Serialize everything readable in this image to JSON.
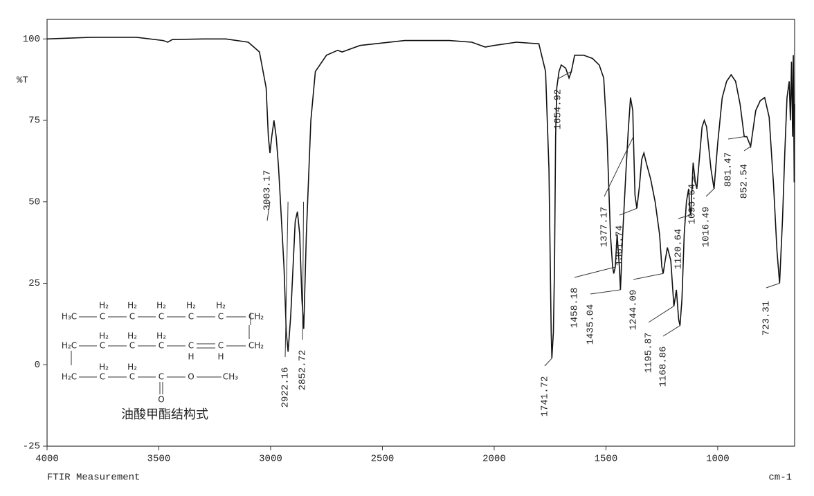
{
  "chart_data": {
    "type": "line",
    "ylabel": "%T",
    "xlabel": "cm-1",
    "footer": "FTIR Measurement",
    "xlim": [
      4000,
      656
    ],
    "ylim": [
      -25,
      106
    ],
    "xticks": [
      4000,
      3500,
      3000,
      2500,
      2000,
      1500,
      1000
    ],
    "yticks": [
      100,
      75,
      50,
      25,
      0,
      -25
    ],
    "color": "#111111",
    "x": [
      4000,
      3800,
      3600,
      3480,
      3460,
      3440,
      3300,
      3200,
      3100,
      3050,
      3020,
      3010,
      3003,
      2995,
      2985,
      2975,
      2965,
      2960,
      2940,
      2930,
      2922,
      2910,
      2890,
      2880,
      2870,
      2860,
      2852,
      2840,
      2820,
      2800,
      2750,
      2700,
      2680,
      2600,
      2400,
      2200,
      2100,
      2040,
      2000,
      1900,
      1800,
      1770,
      1755,
      1745,
      1741.72,
      1735,
      1730,
      1725,
      1720,
      1710,
      1700,
      1680,
      1665,
      1654.92,
      1640,
      1600,
      1560,
      1530,
      1510,
      1495,
      1480,
      1470,
      1465,
      1458.18,
      1450,
      1440,
      1435.04,
      1425,
      1410,
      1400,
      1390,
      1380,
      1377.17,
      1370,
      1361.74,
      1350,
      1340,
      1330,
      1320,
      1300,
      1280,
      1260,
      1250,
      1244.09,
      1235,
      1225,
      1210,
      1200,
      1195.87,
      1185,
      1175,
      1168.86,
      1160,
      1150,
      1140,
      1130,
      1125,
      1120.64,
      1110,
      1100,
      1093.64,
      1080,
      1070,
      1060,
      1050,
      1030,
      1016.49,
      1000,
      980,
      960,
      940,
      920,
      900,
      881.47,
      870,
      852.54,
      830,
      810,
      790,
      770,
      750,
      735,
      723.31,
      710,
      700,
      690,
      680,
      675,
      670,
      665,
      662,
      658,
      656
    ],
    "values": [
      100,
      100.5,
      100.5,
      99.5,
      99,
      99.8,
      100,
      100,
      99,
      96,
      85,
      70,
      65,
      70,
      75,
      70,
      61,
      55,
      30,
      10,
      4,
      15,
      44,
      47,
      40,
      20,
      11,
      40,
      75,
      90,
      95,
      96.5,
      96,
      98,
      99.5,
      99.5,
      99,
      97.5,
      98,
      99,
      98.5,
      90,
      60,
      10,
      2,
      10,
      30,
      70,
      85,
      90,
      92,
      91,
      88,
      90,
      95,
      95,
      94,
      92,
      88,
      70,
      40,
      30,
      28,
      30,
      40,
      30,
      23,
      40,
      60,
      72,
      82,
      78,
      70,
      52,
      48,
      55,
      63,
      65,
      62,
      57,
      50,
      40,
      30,
      28,
      32,
      36,
      32,
      22,
      18,
      23,
      14,
      12,
      20,
      40,
      50,
      54,
      48,
      46,
      62,
      56,
      54,
      65,
      73,
      75,
      73,
      60,
      54,
      68,
      82,
      87,
      89,
      87,
      80,
      70,
      70,
      67,
      78,
      81,
      82,
      76,
      55,
      35,
      25,
      45,
      65,
      82,
      87,
      75,
      93,
      70,
      95,
      56,
      80
    ],
    "peaks": [
      3003.17,
      2922.16,
      2852.72,
      1741.72,
      1654.92,
      1458.18,
      1435.04,
      1377.17,
      1361.74,
      1244.09,
      1195.87,
      1168.86,
      1120.64,
      1093.64,
      1016.49,
      881.47,
      852.54,
      723.31
    ],
    "structure": {
      "atoms": [
        "H₃C",
        "H₂",
        "C",
        "H₂",
        "C",
        "H₂",
        "C",
        "H₂",
        "C",
        "H₂",
        "C",
        "CH₂",
        "H₂C",
        "H₂",
        "C",
        "H₂",
        "C",
        "H₂",
        "C",
        "C",
        "H",
        "C",
        "H",
        "CH₂",
        "H₂C",
        "H₂",
        "C",
        "H₂",
        "C",
        "C",
        "O",
        "CH₃",
        "O"
      ],
      "caption": "油酸甲酯结构式"
    }
  }
}
